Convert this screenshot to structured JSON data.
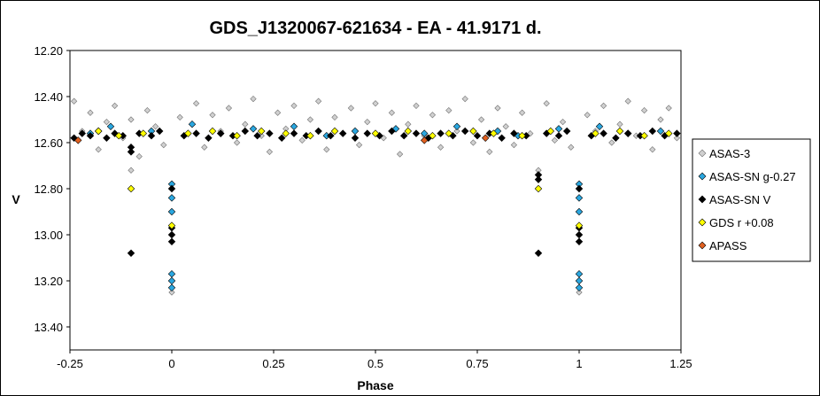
{
  "chart_data": {
    "type": "scatter",
    "title": "GDS_J1320067-621634  - EA - 41.9171 d.",
    "xlabel": "Phase",
    "ylabel": "V",
    "xlim": [
      -0.25,
      1.25
    ],
    "ylim": [
      13.5,
      12.2
    ],
    "y_inverted": true,
    "x_ticks": [
      "-0.25",
      "0",
      "0.25",
      "0.5",
      "0.75",
      "1",
      "1.25"
    ],
    "y_ticks": [
      "12.20",
      "12.40",
      "12.60",
      "12.80",
      "13.00",
      "13.20",
      "13.40"
    ],
    "grid": false,
    "legend_position": "right",
    "series": [
      {
        "name": "ASAS-3",
        "color": "#d0d0d0",
        "edge": "#707070",
        "marker": "diamond",
        "points": [
          [
            -0.24,
            12.42
          ],
          [
            -0.22,
            12.55
          ],
          [
            -0.2,
            12.47
          ],
          [
            -0.18,
            12.63
          ],
          [
            -0.16,
            12.51
          ],
          [
            -0.14,
            12.44
          ],
          [
            -0.12,
            12.58
          ],
          [
            -0.1,
            12.5
          ],
          [
            -0.08,
            12.66
          ],
          [
            -0.06,
            12.46
          ],
          [
            -0.04,
            12.53
          ],
          [
            -0.02,
            12.61
          ],
          [
            0.02,
            12.49
          ],
          [
            0.04,
            12.56
          ],
          [
            0.06,
            12.43
          ],
          [
            0.08,
            12.62
          ],
          [
            0.1,
            12.48
          ],
          [
            0.12,
            12.55
          ],
          [
            0.14,
            12.45
          ],
          [
            0.16,
            12.6
          ],
          [
            0.18,
            12.52
          ],
          [
            0.2,
            12.41
          ],
          [
            0.22,
            12.57
          ],
          [
            0.24,
            12.64
          ],
          [
            0.26,
            12.47
          ],
          [
            0.28,
            12.54
          ],
          [
            0.3,
            12.44
          ],
          [
            0.32,
            12.59
          ],
          [
            0.34,
            12.5
          ],
          [
            0.36,
            12.42
          ],
          [
            0.38,
            12.63
          ],
          [
            0.4,
            12.49
          ],
          [
            0.42,
            12.56
          ],
          [
            0.44,
            12.45
          ],
          [
            0.46,
            12.61
          ],
          [
            0.48,
            12.51
          ],
          [
            0.5,
            12.43
          ],
          [
            0.52,
            12.58
          ],
          [
            0.54,
            12.47
          ],
          [
            0.56,
            12.65
          ],
          [
            0.58,
            12.52
          ],
          [
            0.6,
            12.44
          ],
          [
            0.62,
            12.57
          ],
          [
            0.64,
            12.48
          ],
          [
            0.66,
            12.62
          ],
          [
            0.68,
            12.46
          ],
          [
            0.7,
            12.55
          ],
          [
            0.72,
            12.41
          ],
          [
            0.74,
            12.6
          ],
          [
            0.76,
            12.5
          ],
          [
            0.78,
            12.64
          ],
          [
            0.8,
            12.45
          ],
          [
            0.82,
            12.53
          ],
          [
            0.84,
            12.61
          ],
          [
            0.86,
            12.47
          ],
          [
            0.88,
            12.56
          ],
          [
            0.92,
            12.43
          ],
          [
            0.94,
            12.59
          ],
          [
            0.96,
            12.51
          ],
          [
            0.98,
            12.62
          ],
          [
            1.02,
            12.48
          ],
          [
            1.04,
            12.55
          ],
          [
            1.06,
            12.44
          ],
          [
            1.08,
            12.6
          ],
          [
            1.1,
            12.52
          ],
          [
            1.12,
            12.42
          ],
          [
            1.14,
            12.57
          ],
          [
            1.16,
            12.46
          ],
          [
            1.18,
            12.63
          ],
          [
            1.2,
            12.5
          ],
          [
            1.22,
            12.45
          ],
          [
            1.24,
            12.58
          ],
          [
            0.0,
            13.25
          ],
          [
            1.0,
            13.25
          ],
          [
            -0.1,
            12.72
          ],
          [
            0.9,
            12.72
          ]
        ]
      },
      {
        "name": "ASAS-SN g-0.27",
        "color": "#2aa7e0",
        "edge": "#000000",
        "marker": "diamond",
        "points": [
          [
            -0.2,
            12.56
          ],
          [
            -0.15,
            12.53
          ],
          [
            -0.05,
            12.55
          ],
          [
            0.05,
            12.52
          ],
          [
            0.12,
            12.56
          ],
          [
            0.2,
            12.54
          ],
          [
            0.3,
            12.53
          ],
          [
            0.38,
            12.57
          ],
          [
            0.45,
            12.55
          ],
          [
            0.55,
            12.54
          ],
          [
            0.62,
            12.56
          ],
          [
            0.7,
            12.53
          ],
          [
            0.8,
            12.55
          ],
          [
            0.85,
            12.57
          ],
          [
            0.95,
            12.54
          ],
          [
            1.05,
            12.53
          ],
          [
            1.12,
            12.56
          ],
          [
            1.2,
            12.55
          ],
          [
            0.0,
            12.78
          ],
          [
            0.0,
            12.84
          ],
          [
            0.0,
            12.9
          ],
          [
            0.0,
            13.17
          ],
          [
            0.0,
            13.2
          ],
          [
            0.0,
            13.23
          ],
          [
            1.0,
            12.78
          ],
          [
            1.0,
            12.84
          ],
          [
            1.0,
            12.9
          ],
          [
            1.0,
            13.17
          ],
          [
            1.0,
            13.2
          ],
          [
            1.0,
            13.23
          ]
        ]
      },
      {
        "name": "ASAS-SN V",
        "color": "#000000",
        "edge": "#000000",
        "marker": "diamond",
        "points": [
          [
            -0.24,
            12.58
          ],
          [
            -0.22,
            12.56
          ],
          [
            -0.2,
            12.57
          ],
          [
            -0.18,
            12.55
          ],
          [
            -0.16,
            12.58
          ],
          [
            -0.14,
            12.56
          ],
          [
            -0.12,
            12.57
          ],
          [
            -0.08,
            12.56
          ],
          [
            -0.05,
            12.57
          ],
          [
            -0.03,
            12.55
          ],
          [
            0.03,
            12.57
          ],
          [
            0.06,
            12.56
          ],
          [
            0.09,
            12.58
          ],
          [
            0.12,
            12.56
          ],
          [
            0.15,
            12.57
          ],
          [
            0.18,
            12.55
          ],
          [
            0.21,
            12.57
          ],
          [
            0.24,
            12.56
          ],
          [
            0.27,
            12.58
          ],
          [
            0.3,
            12.56
          ],
          [
            0.33,
            12.57
          ],
          [
            0.36,
            12.55
          ],
          [
            0.39,
            12.57
          ],
          [
            0.42,
            12.56
          ],
          [
            0.45,
            12.58
          ],
          [
            0.48,
            12.56
          ],
          [
            0.51,
            12.57
          ],
          [
            0.54,
            12.55
          ],
          [
            0.57,
            12.57
          ],
          [
            0.6,
            12.56
          ],
          [
            0.63,
            12.58
          ],
          [
            0.66,
            12.56
          ],
          [
            0.69,
            12.57
          ],
          [
            0.72,
            12.55
          ],
          [
            0.75,
            12.57
          ],
          [
            0.78,
            12.56
          ],
          [
            0.81,
            12.58
          ],
          [
            0.84,
            12.56
          ],
          [
            0.87,
            12.57
          ],
          [
            0.92,
            12.56
          ],
          [
            0.95,
            12.57
          ],
          [
            0.97,
            12.55
          ],
          [
            1.03,
            12.57
          ],
          [
            1.06,
            12.56
          ],
          [
            1.09,
            12.58
          ],
          [
            1.12,
            12.56
          ],
          [
            1.15,
            12.57
          ],
          [
            1.18,
            12.55
          ],
          [
            1.21,
            12.57
          ],
          [
            1.24,
            12.56
          ],
          [
            -0.1,
            12.62
          ],
          [
            -0.1,
            12.64
          ],
          [
            -0.1,
            13.08
          ],
          [
            0.9,
            12.74
          ],
          [
            0.9,
            12.76
          ],
          [
            0.9,
            13.08
          ],
          [
            0.0,
            12.97
          ],
          [
            0.0,
            13.0
          ],
          [
            0.0,
            13.03
          ],
          [
            1.0,
            12.97
          ],
          [
            1.0,
            13.0
          ],
          [
            1.0,
            13.03
          ],
          [
            0.0,
            12.8
          ],
          [
            1.0,
            12.8
          ]
        ]
      },
      {
        "name": "GDS r +0.08",
        "color": "#ffff00",
        "edge": "#000000",
        "marker": "diamond",
        "points": [
          [
            -0.18,
            12.55
          ],
          [
            -0.13,
            12.57
          ],
          [
            -0.07,
            12.56
          ],
          [
            0.04,
            12.56
          ],
          [
            0.1,
            12.55
          ],
          [
            0.16,
            12.57
          ],
          [
            0.22,
            12.55
          ],
          [
            0.28,
            12.56
          ],
          [
            0.34,
            12.57
          ],
          [
            0.4,
            12.55
          ],
          [
            0.5,
            12.56
          ],
          [
            0.58,
            12.55
          ],
          [
            0.64,
            12.57
          ],
          [
            0.68,
            12.56
          ],
          [
            0.74,
            12.55
          ],
          [
            0.79,
            12.56
          ],
          [
            0.86,
            12.57
          ],
          [
            0.93,
            12.55
          ],
          [
            1.04,
            12.56
          ],
          [
            1.1,
            12.55
          ],
          [
            1.16,
            12.57
          ],
          [
            1.22,
            12.56
          ],
          [
            -0.1,
            12.8
          ],
          [
            0.9,
            12.8
          ],
          [
            0.0,
            12.96
          ],
          [
            1.0,
            12.96
          ]
        ]
      },
      {
        "name": "APASS",
        "color": "#e06020",
        "edge": "#000000",
        "marker": "diamond",
        "points": [
          [
            -0.23,
            12.59
          ],
          [
            0.62,
            12.59
          ],
          [
            0.77,
            12.58
          ]
        ]
      }
    ]
  }
}
